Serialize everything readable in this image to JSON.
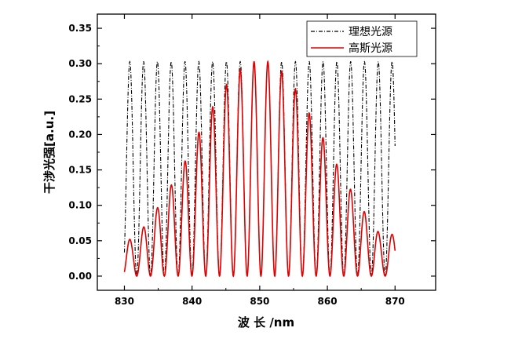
{
  "chart_data": {
    "type": "line",
    "title": "",
    "xlabel": "波 长 /nm",
    "ylabel": "干涉光强[a.u.]",
    "xlim": [
      826,
      876
    ],
    "ylim": [
      -0.02,
      0.37
    ],
    "x_ticks": [
      830,
      840,
      850,
      860,
      870
    ],
    "y_ticks": [
      0.0,
      0.05,
      0.1,
      0.15,
      0.2,
      0.25,
      0.3,
      0.35
    ],
    "x_tick_labels": [
      "830",
      "840",
      "850",
      "860",
      "870"
    ],
    "y_tick_labels": [
      "0.00",
      "0.05",
      "0.10",
      "0.15",
      "0.20",
      "0.25",
      "0.30",
      "0.35"
    ],
    "x_range": [
      830,
      870
    ],
    "legend_position": "top-right",
    "series": [
      {
        "name": "理想光源",
        "style": "dash-dot",
        "color": "#000000",
        "peak": 0.303,
        "minimum": 0.0,
        "fringe_period_nm": 2.04,
        "peak_wavelength_nm": 851.2
      },
      {
        "name": "高斯光源",
        "style": "solid",
        "color": "#e00000",
        "fringe_period_nm": 2.04,
        "peaks": [
          {
            "x": 831.1,
            "y": 0.052
          },
          {
            "x": 833.2,
            "y": 0.073
          },
          {
            "x": 835.2,
            "y": 0.101
          },
          {
            "x": 837.2,
            "y": 0.133
          },
          {
            "x": 839.3,
            "y": 0.168
          },
          {
            "x": 841.1,
            "y": 0.205
          },
          {
            "x": 843.1,
            "y": 0.24
          },
          {
            "x": 845.1,
            "y": 0.271
          },
          {
            "x": 847.1,
            "y": 0.292
          },
          {
            "x": 849.2,
            "y": 0.303
          },
          {
            "x": 851.2,
            "y": 0.303
          },
          {
            "x": 853.3,
            "y": 0.289
          },
          {
            "x": 855.4,
            "y": 0.263
          },
          {
            "x": 857.4,
            "y": 0.229
          },
          {
            "x": 859.5,
            "y": 0.193
          },
          {
            "x": 861.6,
            "y": 0.154
          },
          {
            "x": 863.7,
            "y": 0.118
          },
          {
            "x": 865.8,
            "y": 0.086
          },
          {
            "x": 867.8,
            "y": 0.059
          }
        ]
      }
    ]
  }
}
